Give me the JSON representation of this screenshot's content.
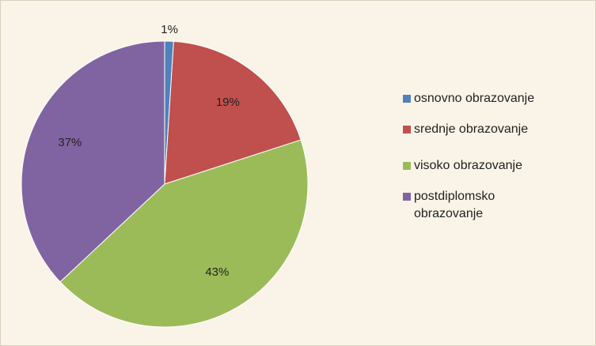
{
  "chart_data": {
    "type": "pie",
    "categories": [
      "osnovno obrazovanje",
      "srednje obrazovanje",
      "visoko obrazovanje",
      "postdiplomsko obrazovanje"
    ],
    "values": [
      1,
      19,
      43,
      37
    ],
    "value_labels": [
      "1%",
      "19%",
      "43%",
      "37%"
    ],
    "colors": [
      "#4f81bd",
      "#c0504d",
      "#9bbb59",
      "#8064a2"
    ],
    "legend": "right"
  }
}
